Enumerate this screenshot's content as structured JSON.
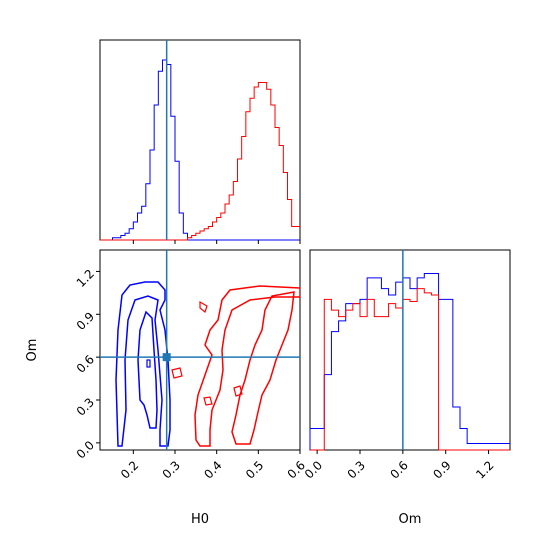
{
  "chart_data": {
    "type": "corner",
    "parameters": [
      "H0",
      "Om"
    ],
    "truth": {
      "H0": 0.28,
      "Om": 0.6
    },
    "colors": {
      "series1": "#0000ff",
      "series2": "#ff0000",
      "truth": "#1f77b4"
    },
    "h0_histogram": {
      "xlim": [
        0.12,
        0.6
      ],
      "bins_edges_start": 0.12,
      "bin_width": 0.01,
      "blue_counts": [
        0,
        0,
        0,
        1,
        1,
        2,
        3,
        5,
        8,
        12,
        15,
        25,
        40,
        60,
        75,
        80,
        78,
        55,
        35,
        12,
        3,
        0,
        0,
        0,
        0,
        0,
        0,
        0,
        0,
        0,
        0,
        0,
        0,
        0,
        0,
        0,
        0,
        0,
        0,
        0,
        0,
        0,
        0,
        0,
        0,
        0,
        0,
        0
      ],
      "red_counts": [
        0,
        0,
        0,
        0,
        0,
        0,
        0,
        0,
        0,
        0,
        0,
        0,
        0,
        0,
        0,
        0,
        0,
        0,
        0,
        0,
        0,
        1,
        2,
        3,
        4,
        5,
        6,
        8,
        10,
        12,
        16,
        20,
        26,
        36,
        46,
        57,
        63,
        68,
        70,
        70,
        67,
        60,
        50,
        42,
        30,
        18,
        6,
        6
      ]
    },
    "om_histogram": {
      "xlim": [
        -0.05,
        1.35
      ],
      "bins_edges_start": -0.05,
      "bin_width": 0.05,
      "blue_counts": [
        10,
        10,
        35,
        55,
        60,
        68,
        68,
        70,
        80,
        80,
        75,
        72,
        78,
        80,
        75,
        80,
        82,
        82,
        70,
        70,
        20,
        10,
        3,
        3,
        3,
        3,
        3,
        3
      ],
      "red_counts": [
        0,
        0,
        70,
        65,
        62,
        65,
        68,
        62,
        70,
        62,
        62,
        68,
        66,
        70,
        69,
        75,
        73,
        72,
        0,
        0,
        0,
        0,
        0,
        0,
        0,
        0,
        0,
        0
      ]
    },
    "contour_panel": {
      "xlim": [
        0.12,
        0.6
      ],
      "ylim": [
        -0.05,
        1.35
      ],
      "xlabel": "H0",
      "ylabel": "Om"
    },
    "x_ticks_h0": [
      "0.2",
      "0.3",
      "0.4",
      "0.5",
      "0.6"
    ],
    "x_ticks_om": [
      "0.0",
      "0.3",
      "0.6",
      "0.9",
      "1.2"
    ],
    "y_ticks_om": [
      "0.0",
      "0.3",
      "0.6",
      "0.9",
      "1.2"
    ]
  }
}
